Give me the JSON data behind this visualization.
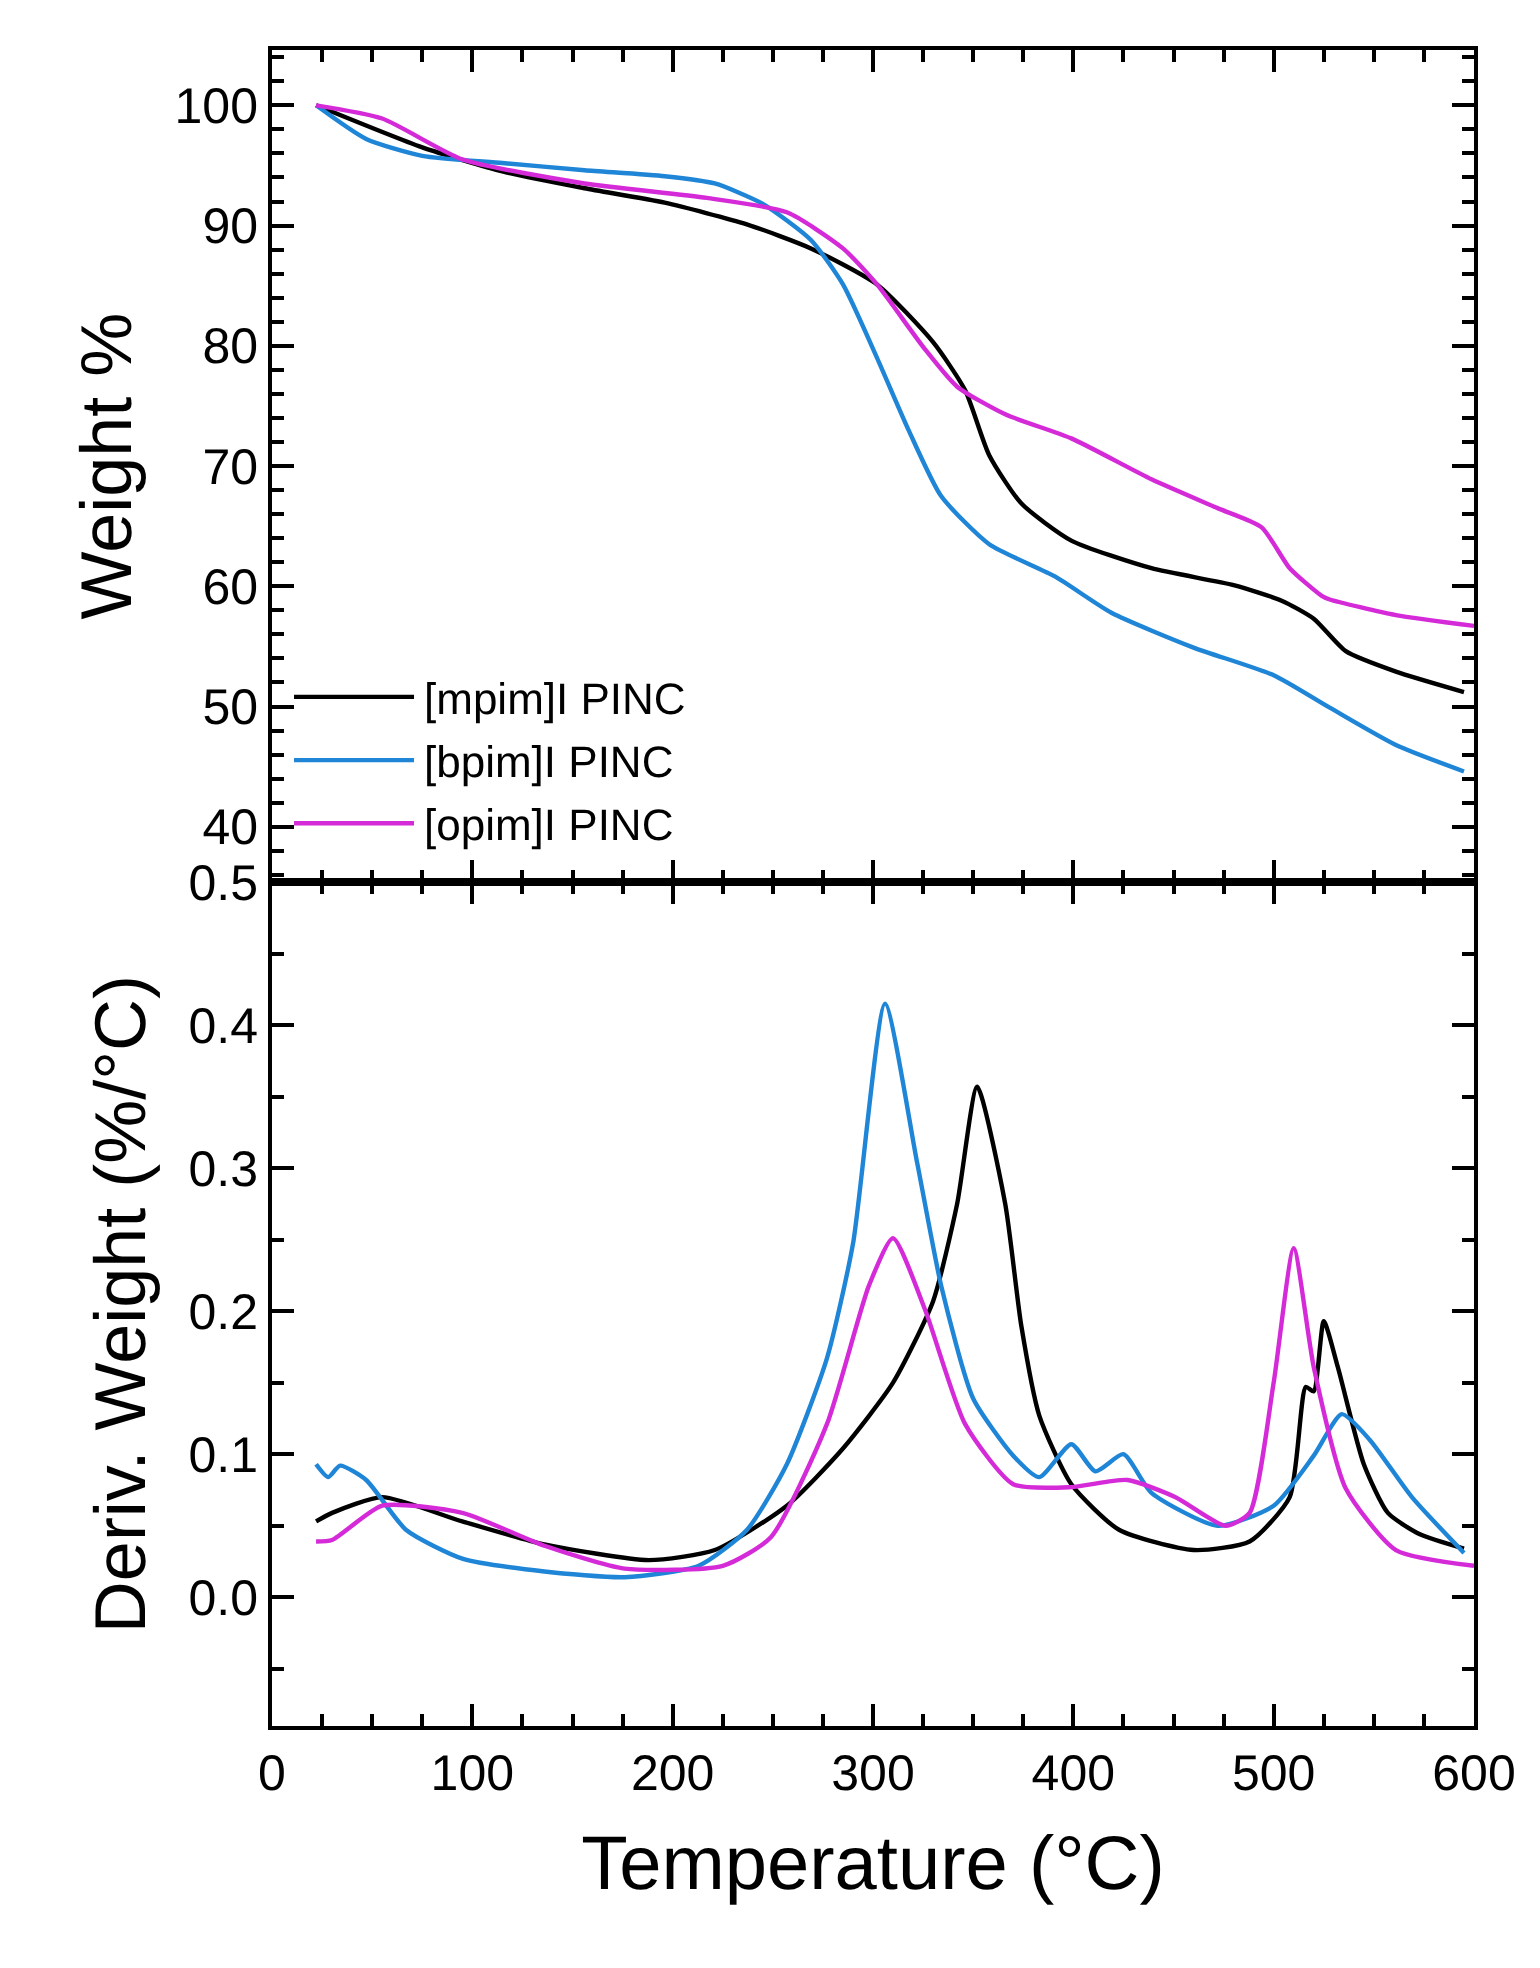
{
  "chart_data": [
    {
      "type": "line",
      "ylabel": "Weight %",
      "xlim": [
        0,
        600
      ],
      "xticks": [
        0,
        100,
        200,
        300,
        400,
        500,
        600
      ],
      "ylim": [
        35.4,
        104.6
      ],
      "yticks": [
        40,
        50,
        60,
        70,
        80,
        90,
        100
      ],
      "tick_labels": "y",
      "legend": "bottom left",
      "marker": "none",
      "line_style": "solid",
      "series": [
        {
          "name": "[mpim]I PINC",
          "color": "#000000",
          "x": [
            22,
            75,
            115,
            156,
            196,
            237,
            269,
            302,
            330,
            346,
            358,
            374,
            399,
            439,
            480,
            504,
            520,
            536,
            561,
            595
          ],
          "values": [
            100,
            96.5,
            94.5,
            93.1,
            91.9,
            90.1,
            88.1,
            85.1,
            80.3,
            76.3,
            70.9,
            66.9,
            63.8,
            61.5,
            60.1,
            58.8,
            57.3,
            54.6,
            52.9,
            51.2
          ]
        },
        {
          "name": "[bpim]I PINC",
          "color": "#1f85d6",
          "x": [
            22,
            47,
            75,
            115,
            156,
            196,
            221,
            245,
            269,
            285,
            302,
            318,
            334,
            358,
            391,
            419,
            460,
            500,
            528,
            561,
            595
          ],
          "values": [
            100,
            97.2,
            95.8,
            95.2,
            94.6,
            94.1,
            93.5,
            91.8,
            88.8,
            85.1,
            79.0,
            72.9,
            67.5,
            63.5,
            60.8,
            57.8,
            54.9,
            52.6,
            49.9,
            46.8,
            44.6
          ]
        },
        {
          "name": "[opim]I PINC",
          "color": "#d42ad8",
          "x": [
            22,
            55,
            95,
            156,
            217,
            257,
            285,
            302,
            326,
            342,
            366,
            399,
            439,
            472,
            494,
            508,
            524,
            528,
            561,
            600
          ],
          "values": [
            100,
            98.9,
            95.5,
            93.5,
            92.3,
            91.1,
            88.1,
            85.1,
            79.7,
            76.6,
            74.3,
            72.3,
            68.9,
            66.5,
            64.9,
            61.5,
            59.2,
            58.9,
            57.6,
            56.7
          ]
        }
      ]
    },
    {
      "type": "line",
      "xlabel": "Temperature (°C)",
      "ylabel": "Deriv. Weight (%/°C)",
      "xlim": [
        0,
        600
      ],
      "xticks": [
        0,
        100,
        200,
        300,
        400,
        500,
        600
      ],
      "ylim": [
        -0.09,
        0.5
      ],
      "yticks": [
        {
          "value": 0,
          "label": "0.0"
        },
        0.1,
        0.2,
        0.3,
        0.4,
        0.5
      ],
      "marker": "none",
      "line_style": "solid",
      "series": [
        {
          "color": "#000000",
          "x": [
            22,
            30,
            55,
            95,
            136,
            188,
            221,
            257,
            285,
            310,
            330,
            342,
            352,
            366,
            374,
            383,
            399,
            423,
            460,
            488,
            508,
            516,
            520,
            525,
            532,
            545,
            557,
            573,
            595
          ],
          "values": [
            0.053,
            0.059,
            0.07,
            0.053,
            0.037,
            0.026,
            0.033,
            0.064,
            0.104,
            0.15,
            0.207,
            0.275,
            0.357,
            0.275,
            0.19,
            0.127,
            0.079,
            0.047,
            0.033,
            0.039,
            0.07,
            0.147,
            0.144,
            0.193,
            0.161,
            0.093,
            0.059,
            0.044,
            0.034
          ]
        },
        {
          "color": "#1f85d6",
          "x": [
            22,
            28,
            34,
            47,
            67,
            95,
            136,
            176,
            213,
            237,
            257,
            277,
            290,
            306,
            322,
            334,
            350,
            370,
            383,
            399,
            411,
            425,
            439,
            472,
            500,
            520,
            534,
            548,
            569,
            595
          ],
          "values": [
            0.093,
            0.084,
            0.092,
            0.082,
            0.047,
            0.027,
            0.018,
            0.014,
            0.022,
            0.047,
            0.093,
            0.167,
            0.247,
            0.415,
            0.304,
            0.218,
            0.139,
            0.099,
            0.084,
            0.107,
            0.088,
            0.1,
            0.073,
            0.05,
            0.064,
            0.099,
            0.128,
            0.11,
            0.07,
            0.031
          ]
        },
        {
          "color": "#d42ad8",
          "x": [
            22,
            30,
            55,
            95,
            136,
            176,
            225,
            249,
            277,
            298,
            310,
            326,
            346,
            370,
            399,
            427,
            451,
            476,
            488,
            500,
            510,
            520,
            536,
            561,
            600
          ],
          "values": [
            0.039,
            0.04,
            0.064,
            0.059,
            0.036,
            0.02,
            0.022,
            0.042,
            0.121,
            0.218,
            0.251,
            0.201,
            0.121,
            0.079,
            0.077,
            0.082,
            0.07,
            0.05,
            0.059,
            0.15,
            0.244,
            0.161,
            0.076,
            0.033,
            0.022
          ]
        }
      ]
    }
  ]
}
